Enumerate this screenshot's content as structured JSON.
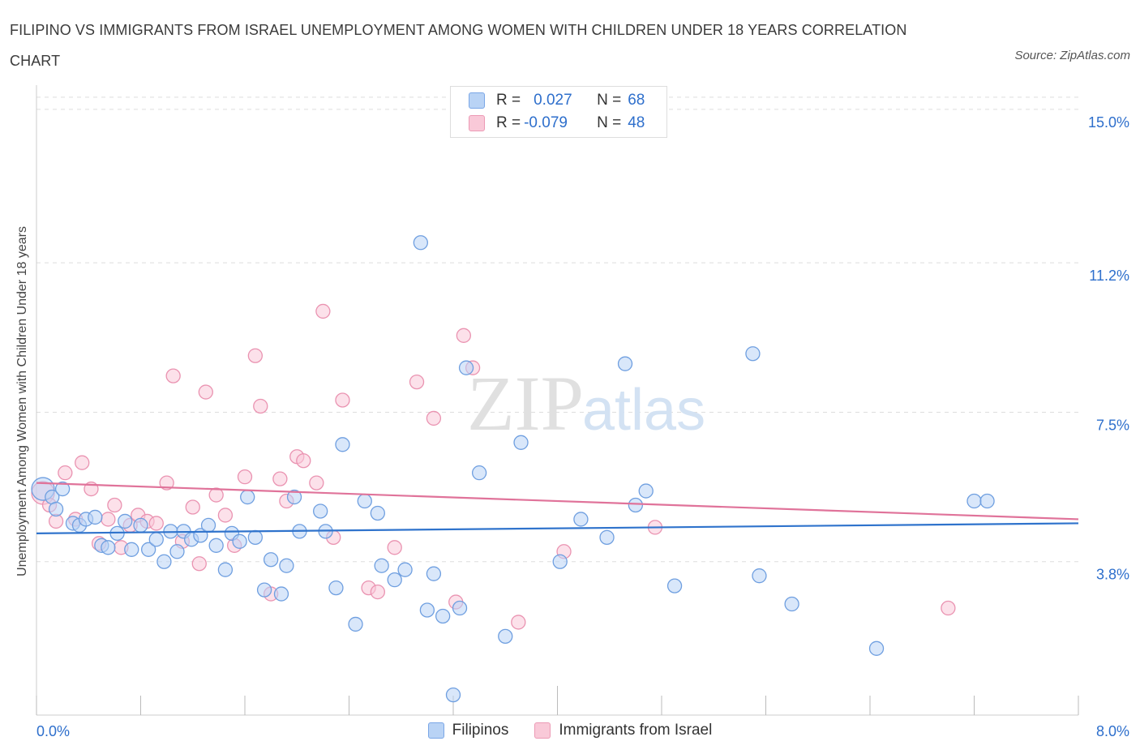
{
  "title": "FILIPINO VS IMMIGRANTS FROM ISRAEL UNEMPLOYMENT AMONG WOMEN WITH CHILDREN UNDER 18 YEARS CORRELATION CHART",
  "source": "Source: ZipAtlas.com",
  "watermark": {
    "zip": "ZIP",
    "atlas": "atlas"
  },
  "legend": {
    "filipinos": {
      "r_label": "R =",
      "r_value": "0.027",
      "n_label": "N =",
      "n_value": "68"
    },
    "israel": {
      "r_label": "R =",
      "r_value": "-0.079",
      "n_label": "N =",
      "n_value": "48"
    }
  },
  "colors": {
    "filipinos_fill": "#b9d3f5",
    "filipinos_stroke": "#6f9fe0",
    "filipinos_line": "#2f73cc",
    "israel_fill": "#f9c9d8",
    "israel_stroke": "#ea93b1",
    "israel_line": "#e0739a",
    "tick_text": "#2e6fcc",
    "grid": "#dddddd"
  },
  "chart_data": {
    "type": "scatter",
    "title": "FILIPINO VS IMMIGRANTS FROM ISRAEL UNEMPLOYMENT AMONG WOMEN WITH CHILDREN UNDER 18 YEARS CORRELATION CHART",
    "xlabel": "",
    "ylabel": "Unemployment Among Women with Children Under 18 years",
    "xlim": [
      0,
      8.0
    ],
    "ylim": [
      0,
      15.5
    ],
    "x_tick_labels": [
      {
        "value": 0,
        "label": "0.0%"
      },
      {
        "value": 8.0,
        "label": "8.0%"
      }
    ],
    "y_ticks": [
      {
        "value": 3.8,
        "label": "3.8%"
      },
      {
        "value": 7.5,
        "label": "7.5%"
      },
      {
        "value": 11.2,
        "label": "11.2%"
      },
      {
        "value": 15.0,
        "label": "15.0%"
      }
    ],
    "grid": true,
    "legend_position": "top-center",
    "series": [
      {
        "name": "Filipinos",
        "trend": {
          "x": [
            0,
            8.0
          ],
          "y": [
            4.5,
            4.75
          ]
        },
        "points": [
          [
            0.05,
            5.6
          ],
          [
            0.12,
            5.4
          ],
          [
            0.15,
            5.1
          ],
          [
            0.2,
            5.6
          ],
          [
            0.28,
            4.75
          ],
          [
            0.33,
            4.7
          ],
          [
            0.38,
            4.85
          ],
          [
            0.45,
            4.9
          ],
          [
            0.5,
            4.2
          ],
          [
            0.55,
            4.15
          ],
          [
            0.62,
            4.5
          ],
          [
            0.68,
            4.8
          ],
          [
            0.73,
            4.1
          ],
          [
            0.8,
            4.7
          ],
          [
            0.86,
            4.1
          ],
          [
            0.92,
            4.35
          ],
          [
            0.98,
            3.8
          ],
          [
            1.03,
            4.55
          ],
          [
            1.08,
            4.05
          ],
          [
            1.13,
            4.55
          ],
          [
            1.19,
            4.35
          ],
          [
            1.26,
            4.45
          ],
          [
            1.32,
            4.7
          ],
          [
            1.38,
            4.2
          ],
          [
            1.45,
            3.6
          ],
          [
            1.5,
            4.5
          ],
          [
            1.56,
            4.3
          ],
          [
            1.62,
            5.4
          ],
          [
            1.68,
            4.4
          ],
          [
            1.75,
            3.1
          ],
          [
            1.8,
            3.85
          ],
          [
            1.88,
            3.0
          ],
          [
            1.92,
            3.7
          ],
          [
            1.98,
            5.4
          ],
          [
            2.02,
            4.55
          ],
          [
            2.18,
            5.05
          ],
          [
            2.22,
            4.55
          ],
          [
            2.3,
            3.15
          ],
          [
            2.35,
            6.7
          ],
          [
            2.45,
            2.25
          ],
          [
            2.52,
            5.3
          ],
          [
            2.62,
            5.0
          ],
          [
            2.65,
            3.7
          ],
          [
            2.75,
            3.35
          ],
          [
            2.83,
            3.6
          ],
          [
            2.95,
            11.7
          ],
          [
            3.0,
            2.6
          ],
          [
            3.05,
            3.5
          ],
          [
            3.12,
            2.45
          ],
          [
            3.2,
            0.5
          ],
          [
            3.25,
            2.65
          ],
          [
            3.3,
            8.6
          ],
          [
            3.4,
            6.0
          ],
          [
            3.6,
            1.95
          ],
          [
            3.72,
            6.75
          ],
          [
            4.02,
            3.8
          ],
          [
            4.18,
            4.85
          ],
          [
            4.38,
            4.4
          ],
          [
            4.52,
            8.7
          ],
          [
            4.6,
            5.2
          ],
          [
            4.68,
            5.55
          ],
          [
            4.9,
            3.2
          ],
          [
            5.5,
            8.95
          ],
          [
            5.55,
            3.45
          ],
          [
            5.8,
            2.75
          ],
          [
            6.45,
            1.65
          ],
          [
            7.2,
            5.3
          ],
          [
            7.3,
            5.3
          ]
        ]
      },
      {
        "name": "Immigrants from Israel",
        "trend": {
          "x": [
            0,
            8.0
          ],
          "y": [
            5.75,
            4.85
          ]
        },
        "points": [
          [
            0.05,
            5.5
          ],
          [
            0.1,
            5.2
          ],
          [
            0.15,
            4.8
          ],
          [
            0.22,
            6.0
          ],
          [
            0.3,
            4.85
          ],
          [
            0.35,
            6.25
          ],
          [
            0.42,
            5.6
          ],
          [
            0.48,
            4.25
          ],
          [
            0.55,
            4.85
          ],
          [
            0.6,
            5.2
          ],
          [
            0.65,
            4.15
          ],
          [
            0.72,
            4.7
          ],
          [
            0.78,
            4.95
          ],
          [
            0.85,
            4.8
          ],
          [
            0.92,
            4.75
          ],
          [
            1.0,
            5.75
          ],
          [
            1.05,
            8.4
          ],
          [
            1.12,
            4.3
          ],
          [
            1.2,
            5.15
          ],
          [
            1.25,
            3.75
          ],
          [
            1.3,
            8.0
          ],
          [
            1.38,
            5.45
          ],
          [
            1.45,
            4.95
          ],
          [
            1.52,
            4.2
          ],
          [
            1.6,
            5.9
          ],
          [
            1.68,
            8.9
          ],
          [
            1.72,
            7.65
          ],
          [
            1.8,
            3.0
          ],
          [
            1.87,
            5.85
          ],
          [
            1.92,
            5.3
          ],
          [
            2.0,
            6.4
          ],
          [
            2.05,
            6.3
          ],
          [
            2.15,
            5.75
          ],
          [
            2.2,
            10.0
          ],
          [
            2.28,
            4.4
          ],
          [
            2.35,
            7.8
          ],
          [
            2.55,
            3.15
          ],
          [
            2.62,
            3.05
          ],
          [
            2.75,
            4.15
          ],
          [
            2.92,
            8.25
          ],
          [
            3.05,
            7.35
          ],
          [
            3.22,
            2.8
          ],
          [
            3.28,
            9.4
          ],
          [
            3.35,
            8.6
          ],
          [
            3.7,
            2.3
          ],
          [
            4.05,
            4.05
          ],
          [
            4.75,
            4.65
          ],
          [
            7.0,
            2.65
          ]
        ]
      }
    ]
  }
}
